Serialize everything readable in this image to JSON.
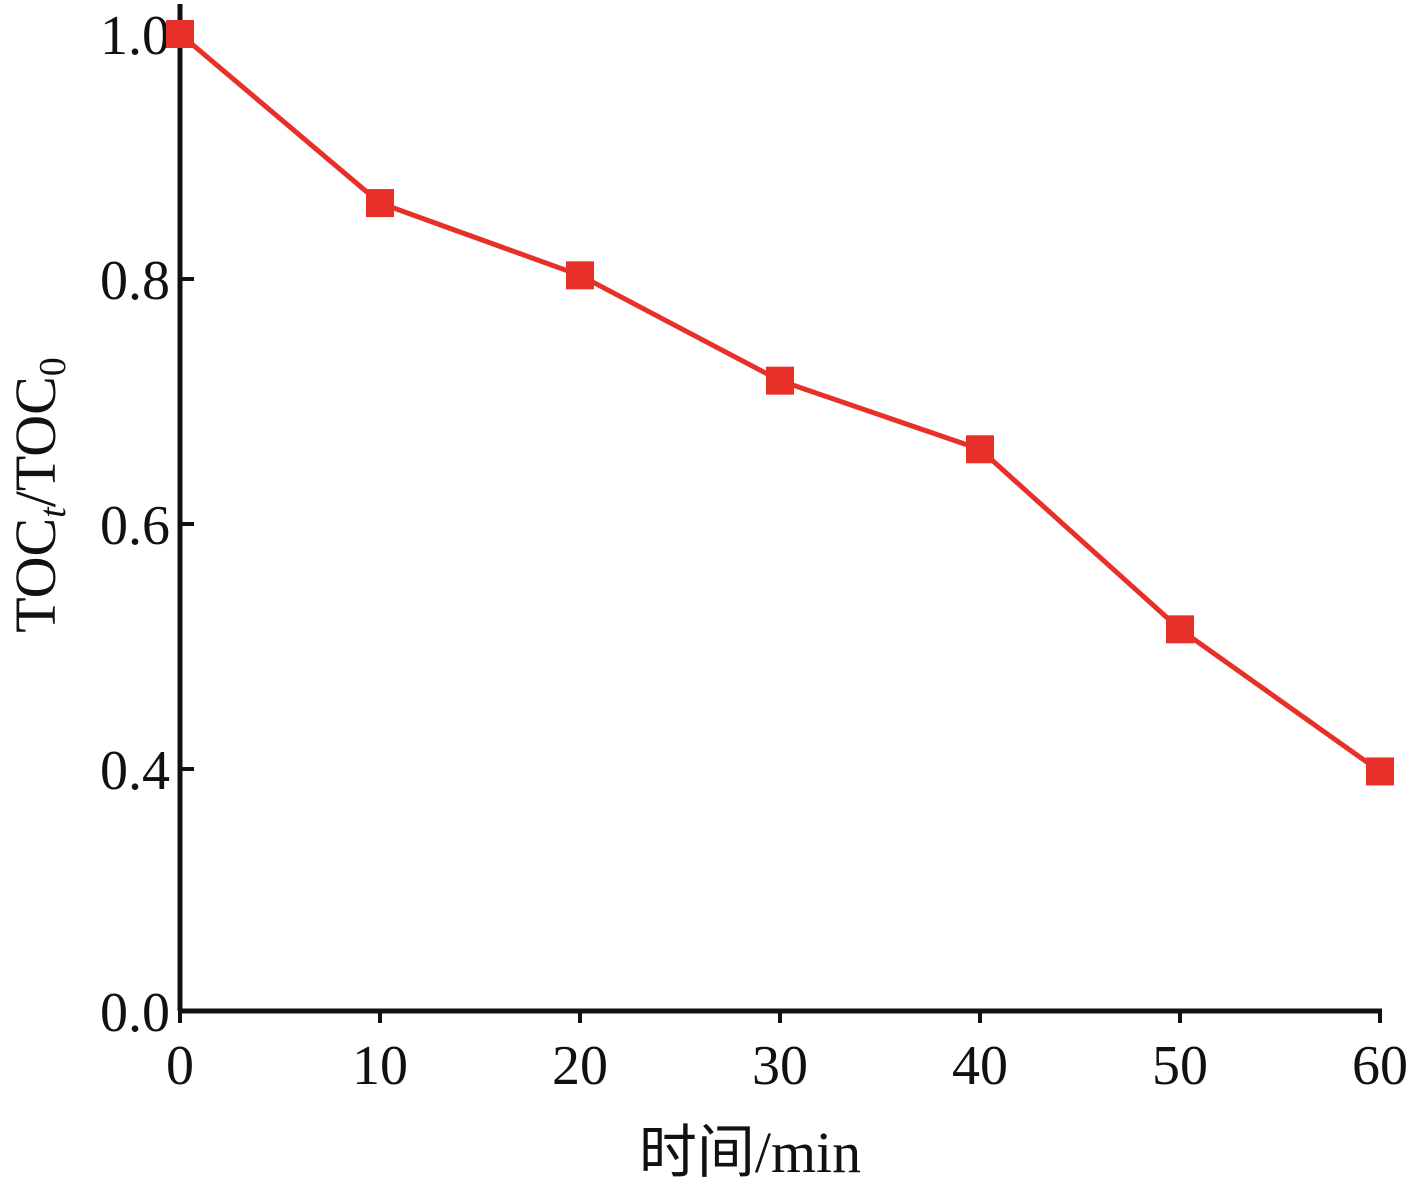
{
  "chart_data": {
    "type": "line",
    "title": "",
    "xlabel": "时间/min",
    "ylabel": {
      "main": "TOC",
      "sub_num": "t",
      "sep": "/TOC",
      "sub_den": "0"
    },
    "x": [
      0,
      10,
      20,
      30,
      40,
      50,
      60
    ],
    "series": [
      {
        "values": [
          1.0,
          0.862,
          0.803,
          0.717,
          0.661,
          0.514,
          0.396
        ]
      }
    ],
    "xlim": [
      0,
      60
    ],
    "ylim": [
      0.0,
      1.0
    ],
    "y_axis_break": true,
    "x_ticks": [
      "0",
      "10",
      "20",
      "30",
      "40",
      "50",
      "60"
    ],
    "y_ticks": [
      {
        "value": 0.0,
        "label": "0.0"
      },
      {
        "value": 0.4,
        "label": "0.4"
      },
      {
        "value": 0.6,
        "label": "0.6"
      },
      {
        "value": 0.8,
        "label": "0.8"
      },
      {
        "value": 1.0,
        "label": "1.0"
      }
    ],
    "grid": false,
    "legend": "none",
    "colors": {
      "series": "#e8302a",
      "axis": "#111111"
    },
    "marker": "square"
  }
}
